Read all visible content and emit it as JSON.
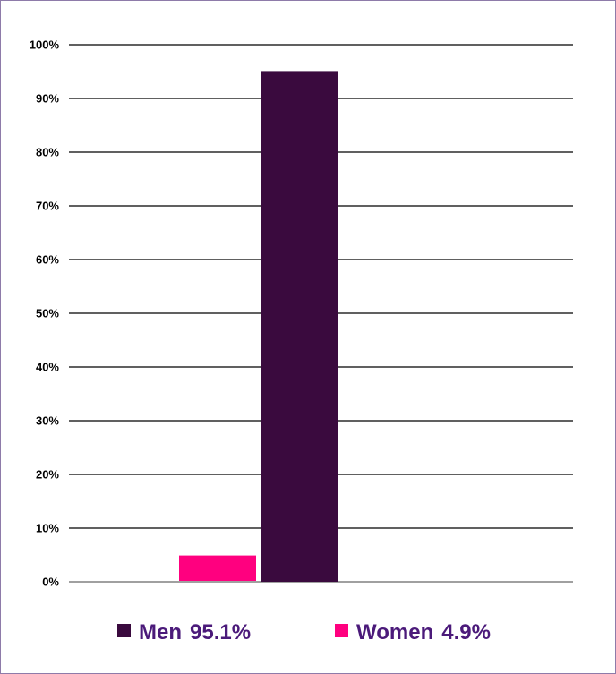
{
  "chart_data": {
    "type": "bar",
    "title": "",
    "xlabel": "",
    "ylabel": "",
    "ylim": [
      0,
      100
    ],
    "y_ticks": [
      {
        "value": 0,
        "label": "0%"
      },
      {
        "value": 10,
        "label": "10%"
      },
      {
        "value": 20,
        "label": "20%"
      },
      {
        "value": 30,
        "label": "30%"
      },
      {
        "value": 40,
        "label": "40%"
      },
      {
        "value": 50,
        "label": "50%"
      },
      {
        "value": 60,
        "label": "60%"
      },
      {
        "value": 70,
        "label": "70%"
      },
      {
        "value": 80,
        "label": "80%"
      },
      {
        "value": 90,
        "label": "90%"
      },
      {
        "value": 100,
        "label": "100%"
      }
    ],
    "grid": true,
    "legend_placement": "bottom",
    "series": [
      {
        "key": "women",
        "legend_label": "Women",
        "value_label": "4.9%",
        "value": 4.9,
        "color": "#ff007f"
      },
      {
        "key": "men",
        "legend_label": "Men",
        "value_label": "95.1%",
        "value": 95.1,
        "color": "#3a0a3e"
      }
    ],
    "legend_order": [
      "men",
      "women"
    ],
    "legend_text_color": "#4b1a7a",
    "border_color": "#8e7ba9"
  }
}
